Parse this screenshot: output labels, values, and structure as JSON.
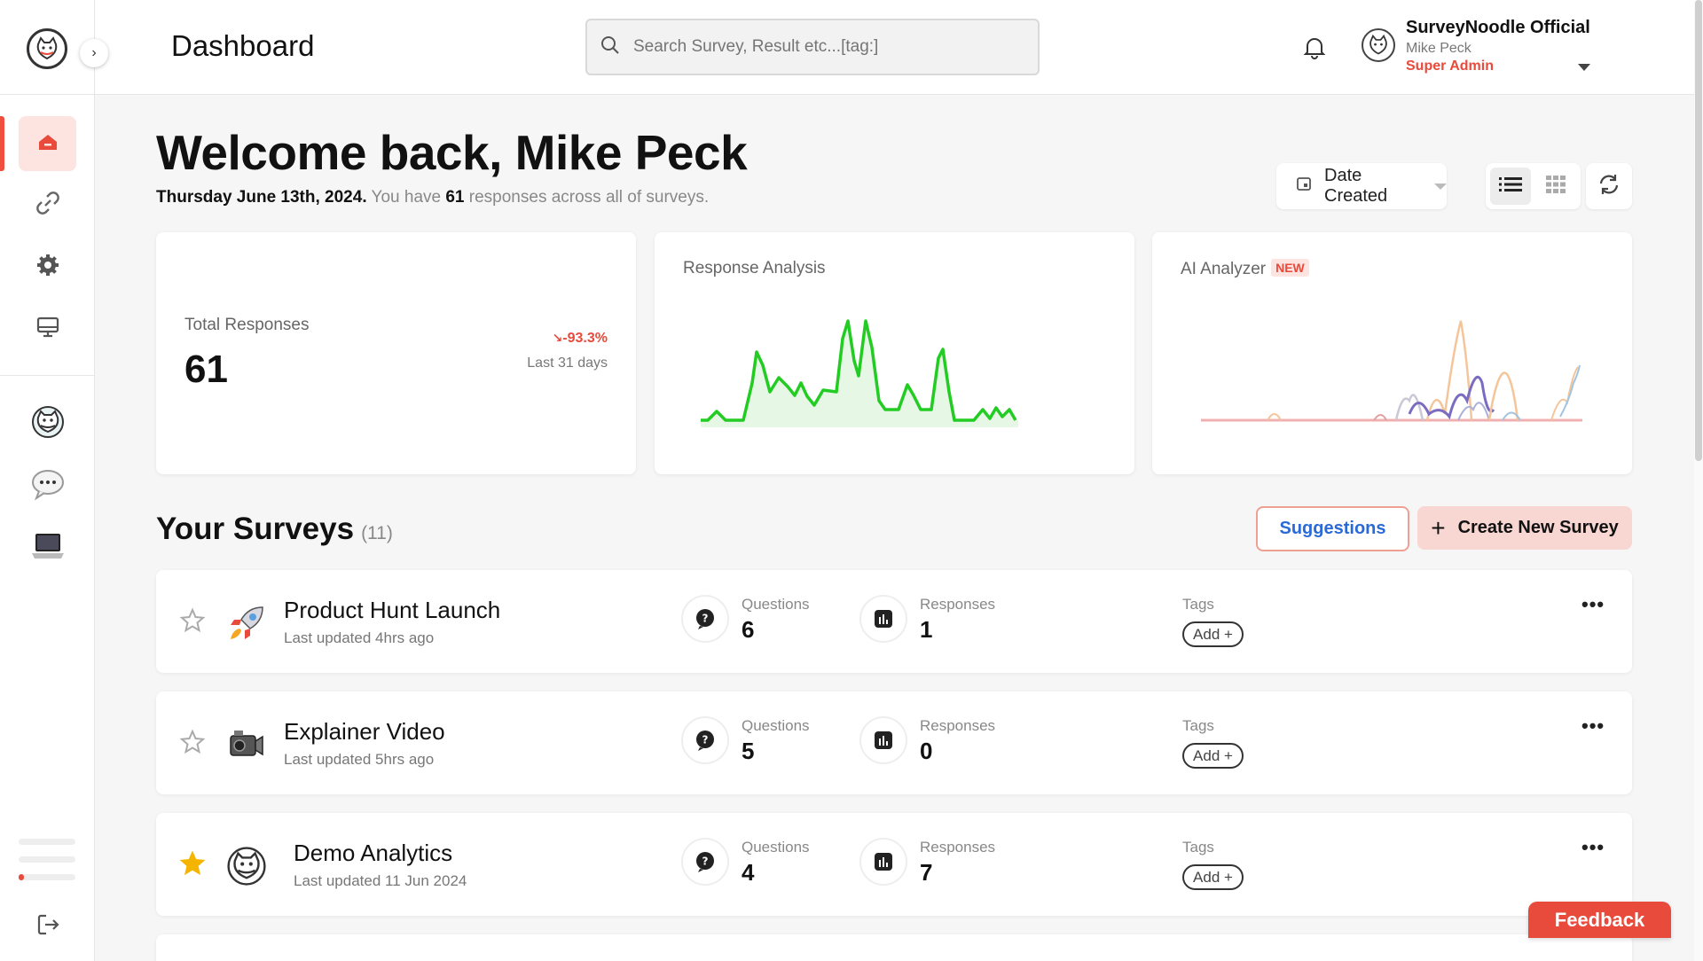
{
  "header": {
    "title": "Dashboard",
    "search_placeholder": "Search Survey, Result etc...[tag:]",
    "user": {
      "org": "SurveyNoodle Official",
      "name": "Mike Peck",
      "role": "Super Admin"
    }
  },
  "sidebar": {
    "items": [
      {
        "icon": "home-icon",
        "active": true
      },
      {
        "icon": "link-icon",
        "active": false
      },
      {
        "icon": "gear-icon",
        "active": false
      },
      {
        "icon": "monitor-icon",
        "active": false
      },
      {
        "icon": "mascot-icon",
        "active": false
      },
      {
        "icon": "chat-bubble-icon",
        "active": false
      },
      {
        "icon": "laptop-icon",
        "active": false
      }
    ],
    "logout_icon": "logout-icon",
    "progress": 0.1
  },
  "welcome": {
    "heading": "Welcome back, Mike Peck",
    "date": "Thursday June 13th, 2024.",
    "pre": " You have ",
    "count": "61",
    "post": " responses across all of surveys."
  },
  "toolbar": {
    "sort_label": "Date Created",
    "view": "list"
  },
  "cards": {
    "total": {
      "label": "Total Responses",
      "value": "61",
      "trend": "-93.3%",
      "trend_period": "Last 31 days"
    },
    "response": {
      "label": "Response Analysis"
    },
    "ai": {
      "label": "AI Analyzer",
      "badge": "NEW"
    }
  },
  "colors": {
    "accent": "#e84a3b",
    "chart_green": "#22cc22",
    "link_blue": "#2a6ad8"
  },
  "surveys_section": {
    "title": "Your Surveys",
    "count": "(11)",
    "suggestions_label": "Suggestions",
    "create_label": "Create New Survey"
  },
  "surveys": [
    {
      "name": "Product Hunt Launch",
      "updated": "Last updated 4hrs ago",
      "icon": "rocket-icon",
      "starred": false,
      "questions_label": "Questions",
      "questions": "6",
      "responses_label": "Responses",
      "responses": "1",
      "tags_label": "Tags",
      "add_label": "Add +"
    },
    {
      "name": "Explainer Video",
      "updated": "Last updated 5hrs ago",
      "icon": "video-camera-icon",
      "starred": false,
      "questions_label": "Questions",
      "questions": "5",
      "responses_label": "Responses",
      "responses": "0",
      "tags_label": "Tags",
      "add_label": "Add +"
    },
    {
      "name": "Demo Analytics",
      "updated": "Last updated 11 Jun 2024",
      "icon": "mascot-icon",
      "starred": true,
      "questions_label": "Questions",
      "questions": "4",
      "responses_label": "Responses",
      "responses": "7",
      "tags_label": "Tags",
      "add_label": "Add +"
    }
  ],
  "feedback_label": "Feedback"
}
